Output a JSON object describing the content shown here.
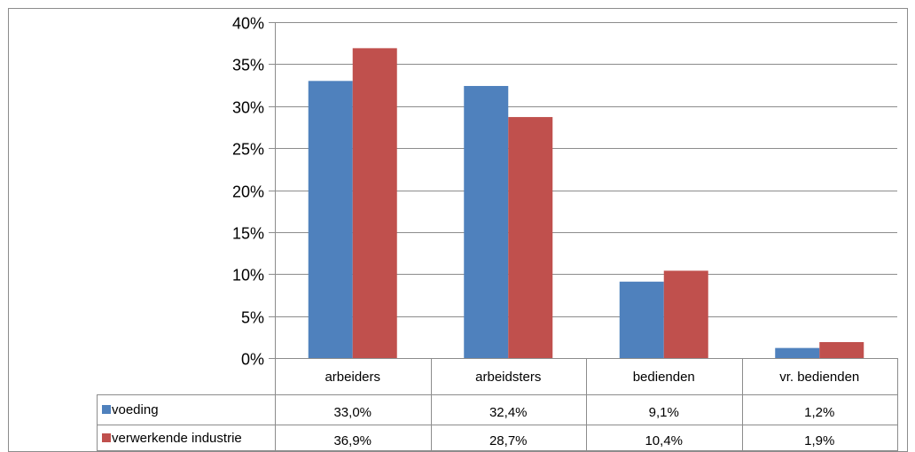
{
  "chart_data": {
    "type": "bar",
    "categories": [
      "arbeiders",
      "arbeidsters",
      "bedienden",
      "vr. bedienden"
    ],
    "series": [
      {
        "name": "voeding",
        "values": [
          33.0,
          32.4,
          9.1,
          1.2
        ],
        "labels": [
          "33,0%",
          "32,4%",
          "9,1%",
          "1,2%"
        ],
        "color": "#4f81bd"
      },
      {
        "name": "verwerkende industrie",
        "values": [
          36.9,
          28.7,
          10.4,
          1.9
        ],
        "labels": [
          "36,9%",
          "28,7%",
          "10,4%",
          "1,9%"
        ],
        "color": "#c0504d"
      }
    ],
    "yticks": [
      "0%",
      "5%",
      "10%",
      "15%",
      "20%",
      "25%",
      "30%",
      "35%",
      "40%"
    ],
    "ylim": [
      0,
      40
    ],
    "grid": true,
    "legend": "data-table"
  }
}
